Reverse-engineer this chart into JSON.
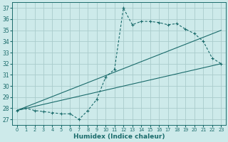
{
  "xlabel": "Humidex (Indice chaleur)",
  "bg_color": "#cdeaea",
  "grid_color": "#aacccc",
  "line_color": "#1a6b6b",
  "xlim": [
    -0.5,
    23.5
  ],
  "ylim": [
    26.5,
    37.5
  ],
  "xticks": [
    0,
    1,
    2,
    3,
    4,
    5,
    6,
    7,
    8,
    9,
    10,
    11,
    12,
    13,
    14,
    15,
    16,
    17,
    18,
    19,
    20,
    21,
    22,
    23
  ],
  "yticks": [
    27,
    28,
    29,
    30,
    31,
    32,
    33,
    34,
    35,
    36,
    37
  ],
  "curve_jagged_x": [
    0,
    1,
    2,
    3,
    4,
    5,
    6,
    7,
    8,
    9,
    10,
    11,
    12,
    13,
    14,
    15,
    16,
    17,
    18,
    19,
    20,
    21,
    22,
    23
  ],
  "curve_jagged_y": [
    27.8,
    28.0,
    27.8,
    27.7,
    27.6,
    27.5,
    27.5,
    27.0,
    27.8,
    28.8,
    30.8,
    31.5,
    37.0,
    35.5,
    35.8,
    35.8,
    35.7,
    35.5,
    35.6,
    35.1,
    34.7,
    34.0,
    32.5,
    32.0
  ],
  "curve_line1_x": [
    0,
    23
  ],
  "curve_line1_y": [
    27.8,
    35.0
  ],
  "curve_line2_x": [
    0,
    23
  ],
  "curve_line2_y": [
    27.8,
    32.0
  ]
}
